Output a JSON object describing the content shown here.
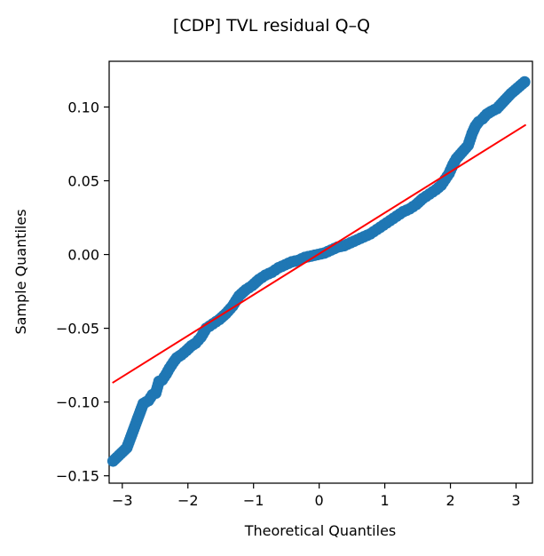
{
  "chart_data": {
    "type": "scatter",
    "title": "[CDP] TVL residual Q–Q",
    "xlabel": "Theoretical Quantiles",
    "ylabel": "Sample Quantiles",
    "xlim": [
      -3.2,
      3.25
    ],
    "ylim": [
      -0.155,
      0.131
    ],
    "x_ticks": [
      {
        "value": -3,
        "label": "−3"
      },
      {
        "value": -2,
        "label": "−2"
      },
      {
        "value": -1,
        "label": "−1"
      },
      {
        "value": 0,
        "label": "0"
      },
      {
        "value": 1,
        "label": "1"
      },
      {
        "value": 2,
        "label": "2"
      },
      {
        "value": 3,
        "label": "3"
      }
    ],
    "y_ticks": [
      {
        "value": -0.15,
        "label": "−0.15"
      },
      {
        "value": -0.1,
        "label": "−0.10"
      },
      {
        "value": -0.05,
        "label": "−0.05"
      },
      {
        "value": 0.0,
        "label": "0.00"
      },
      {
        "value": 0.05,
        "label": "0.05"
      },
      {
        "value": 0.1,
        "label": "0.10"
      }
    ],
    "grid": false,
    "legend": "none",
    "point_color": "#1f77b4",
    "line_color": "#ff0000",
    "reference_line": {
      "x": [
        -3.15,
        3.15
      ],
      "y": [
        -0.087,
        0.088
      ]
    },
    "points": [
      {
        "x": -3.14,
        "y": -0.14
      },
      {
        "x": -2.93,
        "y": -0.131
      },
      {
        "x": -2.78,
        "y": -0.113
      },
      {
        "x": -2.68,
        "y": -0.101
      },
      {
        "x": -2.6,
        "y": -0.099
      },
      {
        "x": -2.54,
        "y": -0.095
      },
      {
        "x": -2.49,
        "y": -0.094
      },
      {
        "x": -2.44,
        "y": -0.086
      },
      {
        "x": -2.39,
        "y": -0.085
      },
      {
        "x": -2.33,
        "y": -0.081
      },
      {
        "x": -2.28,
        "y": -0.077
      },
      {
        "x": -2.22,
        "y": -0.073
      },
      {
        "x": -2.17,
        "y": -0.07
      },
      {
        "x": -2.1,
        "y": -0.068
      },
      {
        "x": -2.02,
        "y": -0.065
      },
      {
        "x": -1.95,
        "y": -0.062
      },
      {
        "x": -1.88,
        "y": -0.06
      },
      {
        "x": -1.8,
        "y": -0.056
      },
      {
        "x": -1.72,
        "y": -0.05
      },
      {
        "x": -1.62,
        "y": -0.047
      },
      {
        "x": -1.52,
        "y": -0.044
      },
      {
        "x": -1.42,
        "y": -0.04
      },
      {
        "x": -1.32,
        "y": -0.035
      },
      {
        "x": -1.22,
        "y": -0.028
      },
      {
        "x": -1.12,
        "y": -0.024
      },
      {
        "x": -1.02,
        "y": -0.021
      },
      {
        "x": -0.92,
        "y": -0.017
      },
      {
        "x": -0.82,
        "y": -0.014
      },
      {
        "x": -0.72,
        "y": -0.012
      },
      {
        "x": -0.62,
        "y": -0.009
      },
      {
        "x": -0.52,
        "y": -0.007
      },
      {
        "x": -0.42,
        "y": -0.005
      },
      {
        "x": -0.32,
        "y": -0.004
      },
      {
        "x": -0.22,
        "y": -0.002
      },
      {
        "x": -0.12,
        "y": -0.001
      },
      {
        "x": -0.02,
        "y": 0.0
      },
      {
        "x": 0.08,
        "y": 0.001
      },
      {
        "x": 0.18,
        "y": 0.003
      },
      {
        "x": 0.28,
        "y": 0.005
      },
      {
        "x": 0.38,
        "y": 0.006
      },
      {
        "x": 0.48,
        "y": 0.008
      },
      {
        "x": 0.58,
        "y": 0.01
      },
      {
        "x": 0.68,
        "y": 0.012
      },
      {
        "x": 0.78,
        "y": 0.014
      },
      {
        "x": 0.88,
        "y": 0.017
      },
      {
        "x": 0.98,
        "y": 0.02
      },
      {
        "x": 1.08,
        "y": 0.023
      },
      {
        "x": 1.18,
        "y": 0.026
      },
      {
        "x": 1.28,
        "y": 0.029
      },
      {
        "x": 1.38,
        "y": 0.031
      },
      {
        "x": 1.48,
        "y": 0.034
      },
      {
        "x": 1.58,
        "y": 0.038
      },
      {
        "x": 1.68,
        "y": 0.041
      },
      {
        "x": 1.78,
        "y": 0.044
      },
      {
        "x": 1.86,
        "y": 0.047
      },
      {
        "x": 1.92,
        "y": 0.051
      },
      {
        "x": 1.98,
        "y": 0.055
      },
      {
        "x": 2.04,
        "y": 0.061
      },
      {
        "x": 2.09,
        "y": 0.065
      },
      {
        "x": 2.15,
        "y": 0.068
      },
      {
        "x": 2.21,
        "y": 0.071
      },
      {
        "x": 2.27,
        "y": 0.074
      },
      {
        "x": 2.33,
        "y": 0.082
      },
      {
        "x": 2.38,
        "y": 0.087
      },
      {
        "x": 2.43,
        "y": 0.09
      },
      {
        "x": 2.49,
        "y": 0.092
      },
      {
        "x": 2.55,
        "y": 0.095
      },
      {
        "x": 2.62,
        "y": 0.097
      },
      {
        "x": 2.71,
        "y": 0.099
      },
      {
        "x": 2.92,
        "y": 0.109
      },
      {
        "x": 3.13,
        "y": 0.117
      }
    ]
  }
}
